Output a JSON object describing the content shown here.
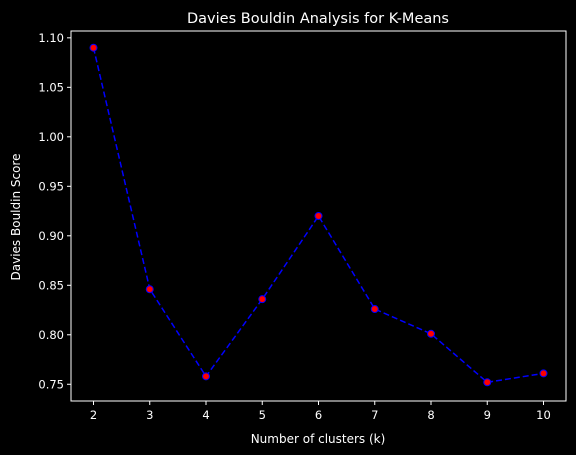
{
  "chart_data": {
    "type": "line",
    "title": "Davies Bouldin Analysis for K-Means",
    "xlabel": "Number of clusters (k)",
    "ylabel": "Davies Bouldin Score",
    "x": [
      2,
      3,
      4,
      5,
      6,
      7,
      8,
      9,
      10
    ],
    "series": [
      {
        "values": [
          1.09,
          0.846,
          0.758,
          0.836,
          0.92,
          0.826,
          0.801,
          0.752,
          0.761
        ]
      }
    ],
    "xlim": [
      1.6,
      10.4
    ],
    "ylim": [
      0.7331,
      1.1069
    ],
    "x_ticks": [
      "2",
      "3",
      "4",
      "5",
      "6",
      "7",
      "8",
      "9",
      "10"
    ],
    "y_ticks": [
      "0.75",
      "0.80",
      "0.85",
      "0.90",
      "0.95",
      "1.00",
      "1.05",
      "1.10"
    ],
    "grid": false,
    "line_style": "dashed",
    "colors": {
      "background": "#000000",
      "line": "#0000ff",
      "marker_fill": "#ff0000",
      "marker_edge": "#0000ff",
      "axes": "#ffffff",
      "text": "#ffffff"
    }
  }
}
